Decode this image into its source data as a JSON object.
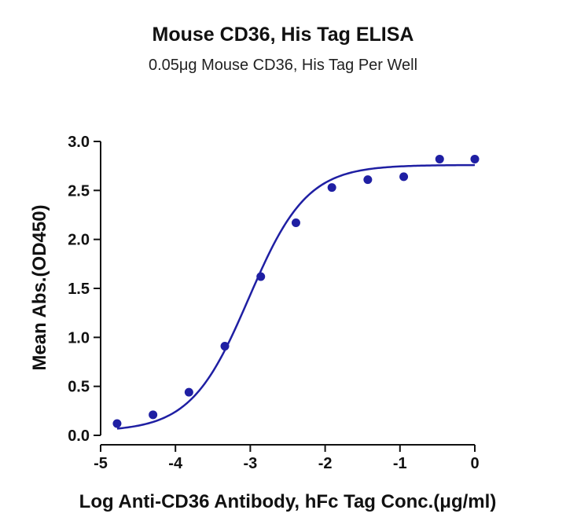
{
  "chart_data": {
    "type": "scatter",
    "title": "Mouse CD36, His Tag ELISA",
    "subtitle": "0.05μg Mouse CD36, His Tag Per Well",
    "xlabel": "Log Anti-CD36 Antibody, hFc Tag Conc.(μg/ml)",
    "ylabel": "Mean Abs.(OD450)",
    "xlim": [
      -5,
      0
    ],
    "ylim": [
      0,
      3.0
    ],
    "x_ticks": [
      -5,
      -4,
      -3,
      -2,
      -1,
      0
    ],
    "y_ticks": [
      "0.0",
      "0.5",
      "1.0",
      "1.5",
      "2.0",
      "2.5",
      "3.0"
    ],
    "grid": false,
    "series": [
      {
        "points": [
          {
            "x": -4.78,
            "y": 0.12
          },
          {
            "x": -4.3,
            "y": 0.21
          },
          {
            "x": -3.82,
            "y": 0.44
          },
          {
            "x": -3.34,
            "y": 0.91
          },
          {
            "x": -2.86,
            "y": 1.62
          },
          {
            "x": -2.39,
            "y": 2.17
          },
          {
            "x": -1.91,
            "y": 2.53
          },
          {
            "x": -1.43,
            "y": 2.61
          },
          {
            "x": -0.95,
            "y": 2.64
          },
          {
            "x": -0.47,
            "y": 2.82
          },
          {
            "x": 0.0,
            "y": 2.82
          }
        ],
        "fit": {
          "model": "4PL",
          "bottom": 0.04,
          "top": 2.76,
          "log_ec50": -3.02,
          "hill_slope": 1.12,
          "x_range": [
            -4.78,
            0.0
          ]
        },
        "color": "#1f1fa3"
      }
    ]
  }
}
